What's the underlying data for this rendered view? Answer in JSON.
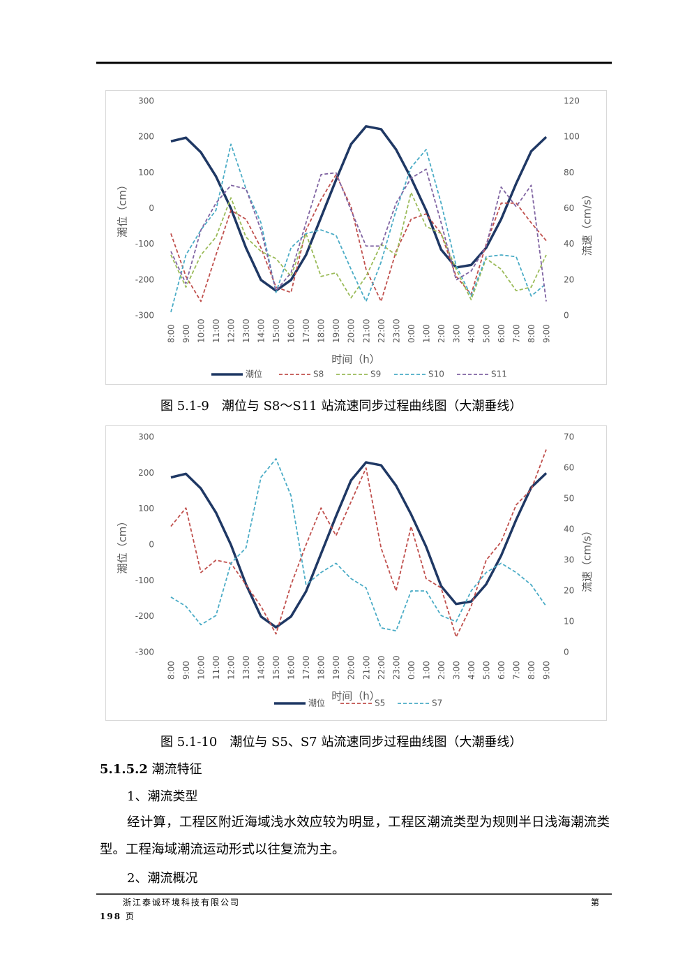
{
  "chart_data": [
    {
      "type": "line",
      "ylabel": "潮位（cm）",
      "y2label": "流速（cm/s）",
      "xlabel": "时间（h）",
      "categories": [
        "8:00",
        "9:00",
        "10:00",
        "11:00",
        "12:00",
        "13:00",
        "14:00",
        "15:00",
        "16:00",
        "17:00",
        "18:00",
        "19:00",
        "20:00",
        "21:00",
        "22:00",
        "23:00",
        "0:00",
        "1:00",
        "2:00",
        "3:00",
        "4:00",
        "5:00",
        "6:00",
        "7:00",
        "8:00",
        "9:00"
      ],
      "ylim": [
        -300,
        300
      ],
      "yticks": [
        -300,
        -200,
        -100,
        0,
        100,
        200,
        300
      ],
      "y2lim": [
        0,
        120
      ],
      "y2ticks": [
        0,
        20,
        40,
        60,
        80,
        100,
        120
      ],
      "grid": false,
      "series": [
        {
          "name": "潮位",
          "color": "#1f3864",
          "style": "solid",
          "values": [
            188,
            198,
            157,
            90,
            0,
            -110,
            -200,
            -230,
            -200,
            -130,
            -25,
            80,
            180,
            230,
            222,
            165,
            85,
            -5,
            -115,
            -165,
            -158,
            -110,
            -30,
            70,
            160,
            200
          ]
        },
        {
          "name": "S8",
          "color": "#c0504d",
          "style": "dashed",
          "axis": "y2",
          "values": [
            46,
            22,
            8,
            34,
            59,
            54,
            38,
            16,
            13,
            48,
            65,
            79,
            61,
            26,
            8,
            36,
            54,
            57,
            46,
            22,
            12,
            40,
            63,
            63,
            52,
            42
          ]
        },
        {
          "name": "S9",
          "color": "#9bbb59",
          "style": "dashed",
          "axis": "y2",
          "values": [
            34,
            16,
            34,
            44,
            66,
            44,
            36,
            32,
            22,
            46,
            22,
            24,
            10,
            22,
            40,
            34,
            69,
            50,
            46,
            26,
            9,
            32,
            26,
            14,
            16,
            34
          ]
        },
        {
          "name": "S10",
          "color": "#4bacc6",
          "style": "dashed",
          "axis": "y2",
          "values": [
            2,
            34,
            48,
            59,
            96,
            71,
            52,
            13,
            38,
            46,
            48,
            45,
            26,
            8,
            30,
            59,
            83,
            93,
            63,
            28,
            11,
            33,
            34,
            33,
            11,
            18
          ]
        },
        {
          "name": "S11",
          "color": "#8064a2",
          "style": "dashed",
          "axis": "y2",
          "values": [
            36,
            18,
            48,
            63,
            73,
            71,
            48,
            14,
            24,
            52,
            79,
            80,
            59,
            39,
            39,
            63,
            77,
            82,
            52,
            20,
            25,
            39,
            72,
            61,
            73,
            8
          ]
        }
      ]
    },
    {
      "type": "line",
      "ylabel": "潮位（cm）",
      "y2label": "流速（cm/s）",
      "xlabel": "时间（h）",
      "categories": [
        "8:00",
        "9:00",
        "10:00",
        "11:00",
        "12:00",
        "13:00",
        "14:00",
        "15:00",
        "16:00",
        "17:00",
        "18:00",
        "19:00",
        "20:00",
        "21:00",
        "22:00",
        "23:00",
        "0:00",
        "1:00",
        "2:00",
        "3:00",
        "4:00",
        "5:00",
        "6:00",
        "7:00",
        "8:00",
        "9:00"
      ],
      "ylim": [
        -300,
        300
      ],
      "yticks": [
        -300,
        -200,
        -100,
        0,
        100,
        200,
        300
      ],
      "y2lim": [
        0,
        70
      ],
      "y2ticks": [
        0,
        10,
        20,
        30,
        40,
        50,
        60,
        70
      ],
      "grid": false,
      "series": [
        {
          "name": "潮位",
          "color": "#1f3864",
          "style": "solid",
          "values": [
            188,
            198,
            157,
            90,
            0,
            -110,
            -200,
            -230,
            -200,
            -130,
            -25,
            80,
            180,
            230,
            222,
            165,
            85,
            -5,
            -115,
            -165,
            -158,
            -110,
            -30,
            70,
            160,
            200
          ]
        },
        {
          "name": "S5",
          "color": "#c0504d",
          "style": "dashed",
          "axis": "y2",
          "values": [
            41,
            47,
            26,
            30,
            29,
            22,
            15,
            6,
            22,
            35,
            47,
            38,
            49,
            60,
            34,
            20,
            41,
            24,
            21,
            5,
            15,
            30,
            36,
            48,
            53,
            66
          ]
        },
        {
          "name": "S7",
          "color": "#4bacc6",
          "style": "dashed",
          "axis": "y2",
          "values": [
            18,
            15,
            9,
            12,
            29,
            34,
            57,
            63,
            51,
            22,
            26,
            29,
            24,
            21,
            8,
            7,
            20,
            20,
            12,
            10,
            20,
            26,
            29,
            26,
            22,
            15
          ]
        }
      ]
    }
  ],
  "captions": [
    "图 5.1-9　潮位与  S8～S11  站流速同步过程曲线图（大潮垂线）",
    "图 5.1-10　潮位与  S5、S7  站流速同步过程曲线图（大潮垂线）"
  ],
  "section": {
    "number": "5.1.5.2",
    "title": "潮流特征"
  },
  "items": [
    "1、潮流类型",
    "2、潮流概况"
  ],
  "paragraph": "经计算，工程区附近海域浅水效应较为明显，工程区潮流类型为规则半日浅海潮流类型。工程海域潮流运动形式以往复流为主。",
  "footer": {
    "company": "浙江泰诚环境科技有限公司",
    "page_prefix": "第",
    "page_number": 198,
    "page_suffix": "页"
  }
}
